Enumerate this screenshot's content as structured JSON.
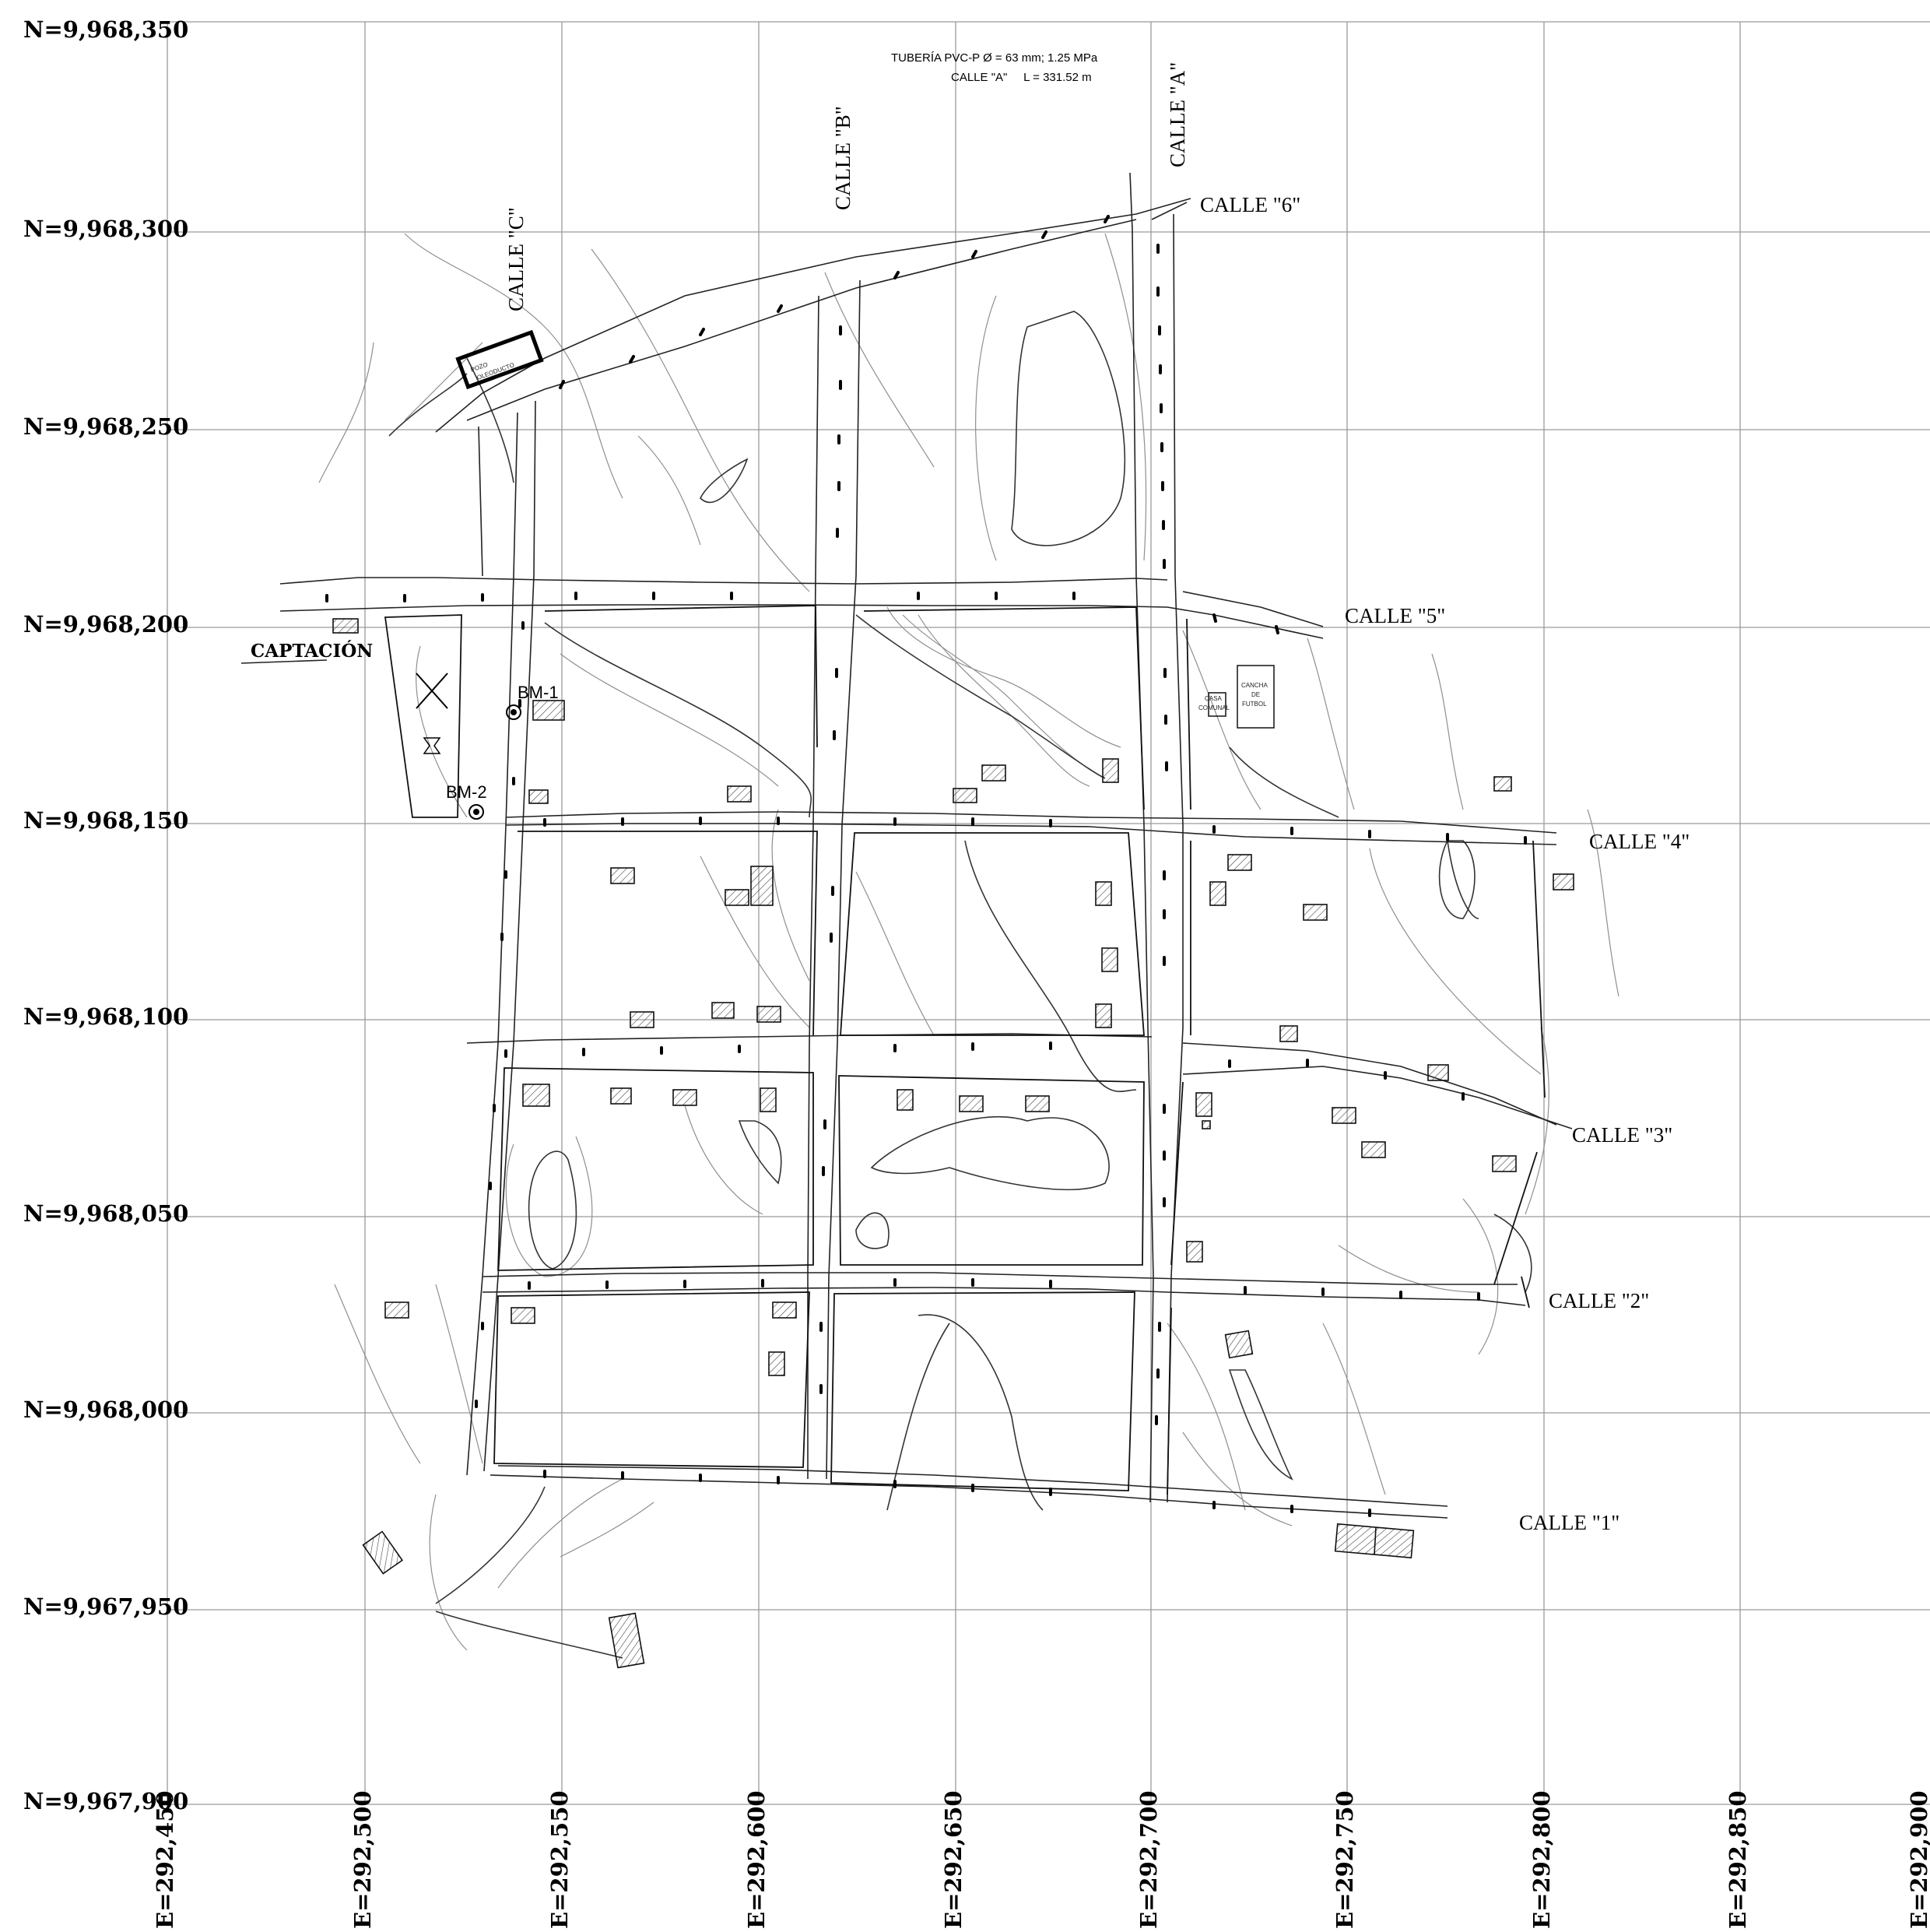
{
  "map": {
    "northings": [
      "N=9,968,350",
      "N=9,968,300",
      "N=9,968,250",
      "N=9,968,200",
      "N=9,968,150",
      "N=9,968,100",
      "N=9,968,050",
      "N=9,968,000",
      "N=9,967,950",
      "N=9,967,900"
    ],
    "eastings": [
      "E=292,450",
      "E=292,500",
      "E=292,550",
      "E=292,600",
      "E=292,650",
      "E=292,700",
      "E=292,750",
      "E=292,800",
      "E=292,850",
      "E=292,900"
    ],
    "pipe_note": {
      "line1": "TUBERÍA PVC-P Ø = 63 mm; 1.25 MPa",
      "line2": "CALLE \"A\"     L = 331.52 m"
    },
    "streets": {
      "calle_a": "CALLE \"A\"",
      "calle_b": "CALLE \"B\"",
      "calle_c": "CALLE \"C\"",
      "calle_1": "CALLE \"1\"",
      "calle_2": "CALLE \"2\"",
      "calle_3": "CALLE \"3\"",
      "calle_4": "CALLE \"4\"",
      "calle_5": "CALLE \"5\"",
      "calle_6": "CALLE \"6\""
    },
    "features": {
      "captacion": "CAPTACIÓN",
      "bm1": "BM-1",
      "bm2": "BM-2",
      "pozo_line1": "POZO",
      "pozo_line2": "OLEODUCTO",
      "casa_line1": "CASA",
      "casa_line2": "COMUNAL",
      "cancha_line1": "CANCHA",
      "cancha_line2": "DE",
      "cancha_line3": "FUTBOL"
    }
  }
}
